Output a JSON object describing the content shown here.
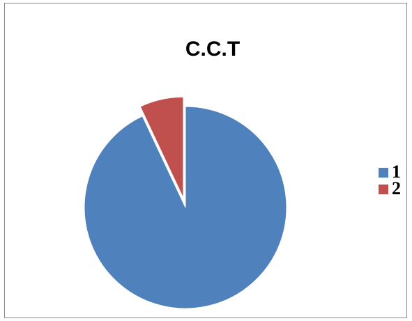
{
  "chart_data": {
    "type": "pie",
    "title": "C.C.T",
    "categories": [
      "1",
      "2"
    ],
    "values": [
      93,
      7
    ],
    "colors": [
      "#4f81bd",
      "#c0504d"
    ],
    "exploded": [
      false,
      true
    ],
    "legend": "right"
  }
}
